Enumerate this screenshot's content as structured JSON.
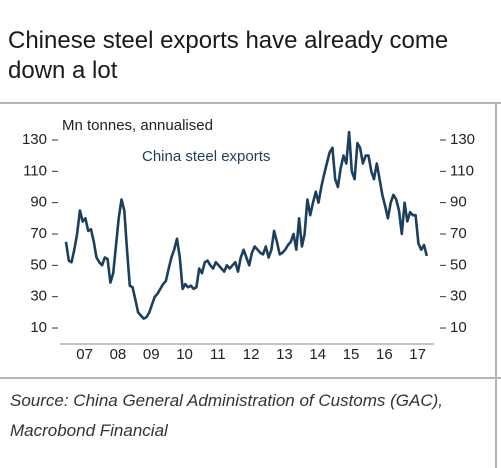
{
  "chart_data": {
    "type": "line",
    "title": "Chinese steel exports have already come down a lot",
    "y_label": "Mn tonnes, annualised",
    "source": "Source: China General Administration of Customs (GAC), Macrobond Financial",
    "categories": [
      null,
      null,
      null,
      null,
      null,
      null,
      "07",
      null,
      null,
      null,
      null,
      null,
      null,
      null,
      null,
      null,
      null,
      null,
      "08",
      null,
      null,
      null,
      null,
      null,
      null,
      null,
      null,
      null,
      null,
      null,
      "09",
      null,
      null,
      null,
      null,
      null,
      null,
      null,
      null,
      null,
      null,
      null,
      "10",
      null,
      null,
      null,
      null,
      null,
      null,
      null,
      null,
      null,
      null,
      null,
      "11",
      null,
      null,
      null,
      null,
      null,
      null,
      null,
      null,
      null,
      null,
      null,
      "12",
      null,
      null,
      null,
      null,
      null,
      null,
      null,
      null,
      null,
      null,
      null,
      "13",
      null,
      null,
      null,
      null,
      null,
      null,
      null,
      null,
      null,
      null,
      null,
      "14",
      null,
      null,
      null,
      null,
      null,
      null,
      null,
      null,
      null,
      null,
      null,
      "15",
      null,
      null,
      null,
      null,
      null,
      null,
      null,
      null,
      null,
      null,
      null,
      "16",
      null,
      null,
      null,
      null,
      null,
      null,
      null,
      null,
      null,
      null,
      null,
      "17",
      null,
      null,
      null,
      null
    ],
    "series": [
      {
        "name": "China steel exports",
        "color": "#1c3f5e",
        "values": [
          65,
          53,
          52,
          60,
          70,
          85,
          78,
          80,
          72,
          73,
          65,
          55,
          52,
          50,
          55,
          54,
          39,
          45,
          62,
          80,
          92,
          85,
          60,
          37,
          36,
          28,
          20,
          18,
          16,
          17,
          20,
          25,
          30,
          32,
          35,
          38,
          40,
          48,
          55,
          60,
          67,
          55,
          35,
          38,
          36,
          37,
          35,
          36,
          48,
          45,
          52,
          53,
          50,
          48,
          52,
          50,
          48,
          46,
          50,
          48,
          50,
          52,
          46,
          55,
          60,
          55,
          50,
          58,
          62,
          60,
          58,
          57,
          62,
          55,
          60,
          72,
          65,
          57,
          58,
          60,
          63,
          65,
          70,
          60,
          80,
          62,
          70,
          92,
          82,
          90,
          97,
          90,
          100,
          108,
          115,
          122,
          125,
          105,
          100,
          112,
          120,
          115,
          135,
          110,
          105,
          128,
          125,
          115,
          120,
          120,
          110,
          105,
          115,
          105,
          95,
          88,
          80,
          90,
          95,
          92,
          85,
          70,
          90,
          78,
          84,
          82,
          82,
          64,
          60,
          63,
          56
        ]
      }
    ],
    "ylim": [
      0,
      140
    ],
    "yticks": [
      10,
      30,
      50,
      70,
      90,
      110,
      130
    ],
    "y2lim": [
      0,
      140
    ],
    "y2ticks": [
      10,
      30,
      50,
      70,
      90,
      110,
      130
    ]
  }
}
